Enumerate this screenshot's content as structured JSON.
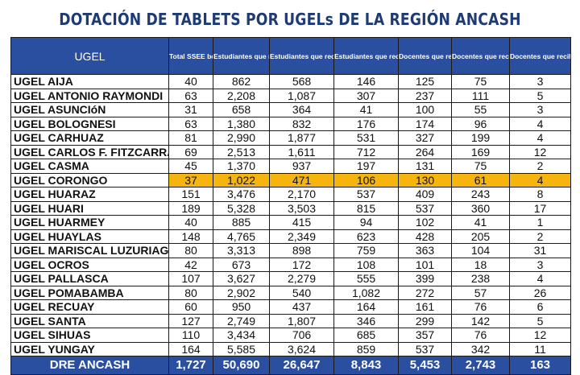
{
  "title": "DOTACIÓN DE TABLETS POR UGELs DE LA REGIÓN ANCASH",
  "headers": [
    "UGEL",
    "Total SSEE beneficiarios",
    "Estudiantes que recibirian tablets",
    "Estudiantes que recibirian tablets con internet",
    "Estudiantes que recibirian tablets con cargador solar",
    "Docentes que recibirian tablets",
    "Docentes que recibirian tablets con internet",
    "Docentes que recibirian tablets con cargador solar"
  ],
  "rows": [
    {
      "name": "UGEL AIJA",
      "cells": [
        "40",
        "862",
        "568",
        "146",
        "125",
        "75",
        "3"
      ],
      "highlight": false
    },
    {
      "name": "UGEL ANTONIO RAYMONDI",
      "cells": [
        "63",
        "2,208",
        "1,087",
        "307",
        "237",
        "111",
        "5"
      ],
      "highlight": false
    },
    {
      "name": "UGEL ASUNCIóN",
      "cells": [
        "31",
        "658",
        "364",
        "41",
        "100",
        "55",
        "3"
      ],
      "highlight": false
    },
    {
      "name": "UGEL BOLOGNESI",
      "cells": [
        "63",
        "1,380",
        "832",
        "176",
        "174",
        "96",
        "4"
      ],
      "highlight": false
    },
    {
      "name": "UGEL CARHUAZ",
      "cells": [
        "81",
        "2,990",
        "1,877",
        "531",
        "327",
        "199",
        "4"
      ],
      "highlight": false
    },
    {
      "name": "UGEL CARLOS F. FITZCARRALD",
      "cells": [
        "69",
        "2,513",
        "1,611",
        "712",
        "264",
        "169",
        "12"
      ],
      "highlight": false
    },
    {
      "name": "UGEL CASMA",
      "cells": [
        "45",
        "1,370",
        "937",
        "197",
        "131",
        "75",
        "2"
      ],
      "highlight": false
    },
    {
      "name": "UGEL CORONGO",
      "cells": [
        "37",
        "1,022",
        "471",
        "106",
        "130",
        "61",
        "4"
      ],
      "highlight": true
    },
    {
      "name": "UGEL HUARAZ",
      "cells": [
        "151",
        "3,476",
        "2,170",
        "537",
        "409",
        "243",
        "8"
      ],
      "highlight": false
    },
    {
      "name": "UGEL HUARI",
      "cells": [
        "189",
        "5,328",
        "3,503",
        "815",
        "537",
        "360",
        "17"
      ],
      "highlight": false
    },
    {
      "name": "UGEL HUARMEY",
      "cells": [
        "40",
        "885",
        "415",
        "94",
        "102",
        "41",
        "1"
      ],
      "highlight": false
    },
    {
      "name": "UGEL HUAYLAS",
      "cells": [
        "148",
        "4,765",
        "2,349",
        "623",
        "428",
        "205",
        "2"
      ],
      "highlight": false
    },
    {
      "name": "UGEL MARISCAL LUZURIAGA",
      "cells": [
        "80",
        "3,313",
        "898",
        "759",
        "363",
        "104",
        "31"
      ],
      "highlight": false
    },
    {
      "name": "UGEL OCROS",
      "cells": [
        "42",
        "673",
        "172",
        "108",
        "101",
        "18",
        "3"
      ],
      "highlight": false
    },
    {
      "name": "UGEL PALLASCA",
      "cells": [
        "107",
        "3,627",
        "2,279",
        "555",
        "399",
        "238",
        "4"
      ],
      "highlight": false
    },
    {
      "name": "UGEL POMABAMBA",
      "cells": [
        "80",
        "2,902",
        "540",
        "1,082",
        "272",
        "57",
        "26"
      ],
      "highlight": false
    },
    {
      "name": "UGEL RECUAY",
      "cells": [
        "60",
        "950",
        "437",
        "164",
        "161",
        "76",
        "6"
      ],
      "highlight": false
    },
    {
      "name": "UGEL SANTA",
      "cells": [
        "127",
        "2,749",
        "1,807",
        "346",
        "299",
        "142",
        "5"
      ],
      "highlight": false
    },
    {
      "name": "UGEL SIHUAS",
      "cells": [
        "110",
        "3,434",
        "706",
        "685",
        "357",
        "76",
        "12"
      ],
      "highlight": false
    },
    {
      "name": "UGEL YUNGAY",
      "cells": [
        "164",
        "5,585",
        "3,624",
        "859",
        "537",
        "342",
        "11"
      ],
      "highlight": false
    }
  ],
  "total": {
    "name": "DRE ANCASH",
    "cells": [
      "1,727",
      "50,690",
      "26,647",
      "8,843",
      "5,453",
      "2,743",
      "163"
    ]
  },
  "colors": {
    "header_bg": "#2a4ea0",
    "title": "#1f3b73",
    "highlight": "#f6b40e"
  }
}
